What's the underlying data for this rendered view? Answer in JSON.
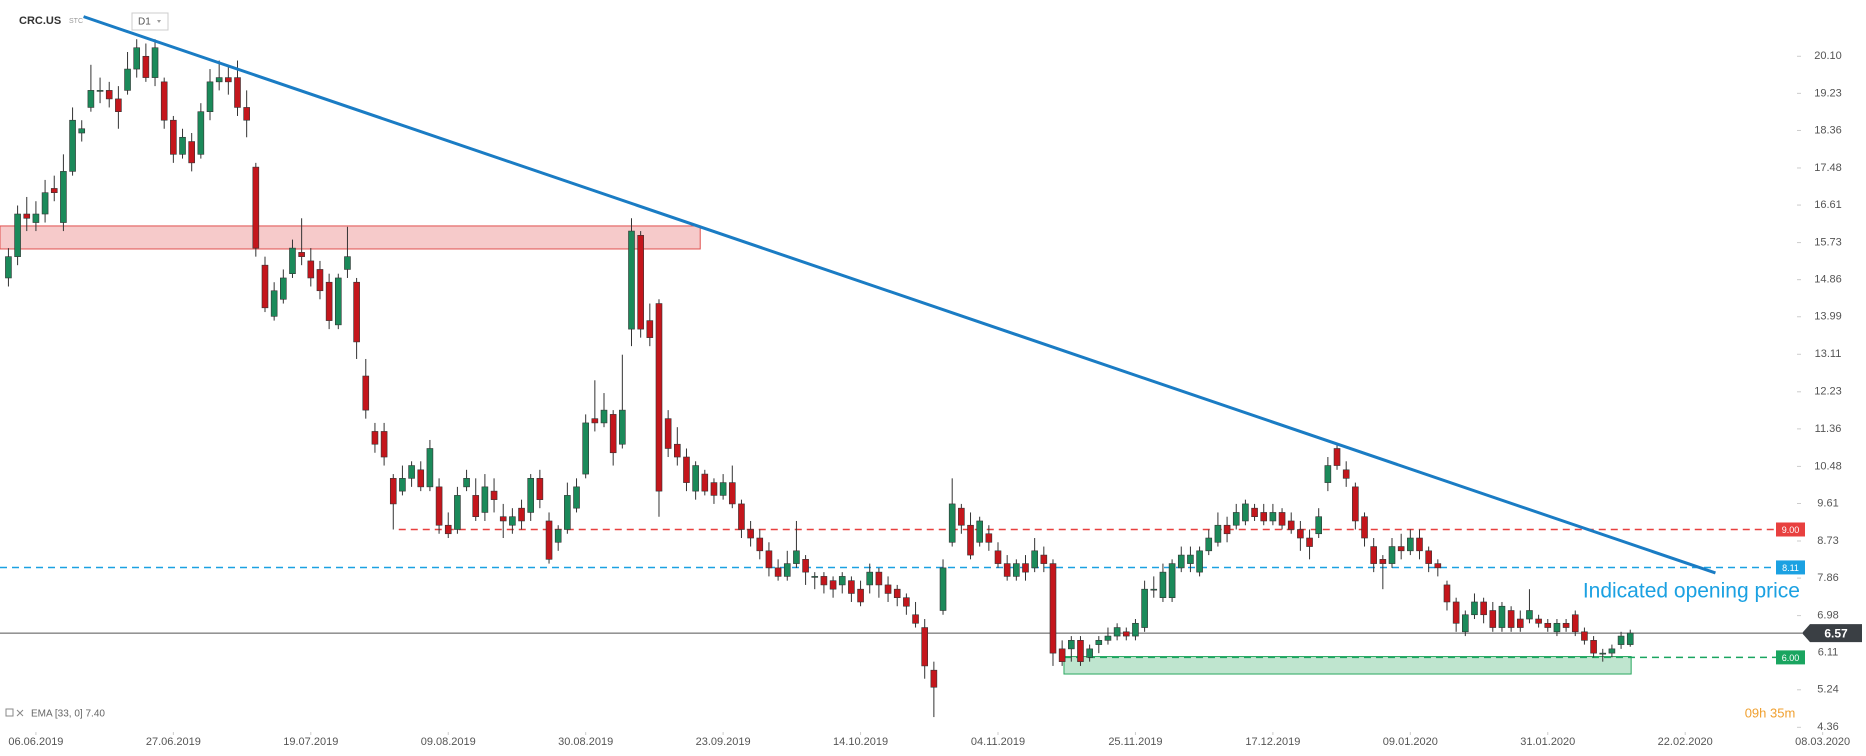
{
  "chart_data": {
    "type": "candlestick",
    "symbol": "CRC.US",
    "source": "STC",
    "timeframe": "D1",
    "indicator": "EMA [33, 0] 7.40",
    "annotation": "Indicated opening price",
    "countdown": "09h 35m",
    "up_color": "#1b8a5a",
    "down_color": "#c4161c",
    "open": [
      14.9,
      15.4,
      16.4,
      16.2,
      16.4,
      17.0,
      16.2,
      17.4,
      18.3,
      18.9,
      19.3,
      19.3,
      19.1,
      19.3,
      19.8,
      20.1,
      19.6,
      19.5,
      18.6,
      17.8,
      18.1,
      17.8,
      18.8,
      19.5,
      19.6,
      19.6,
      18.9,
      17.5,
      15.2,
      14.0,
      14.4,
      15.0,
      15.5,
      15.3,
      15.1,
      14.8,
      13.8,
      15.1,
      14.8,
      12.6,
      11.3,
      11.3,
      10.2,
      9.9,
      10.2,
      10.4,
      10.0,
      10.0,
      9.1,
      9.0,
      10.0,
      9.8,
      9.4,
      9.9,
      9.3,
      9.1,
      9.5,
      9.4,
      10.2,
      9.2,
      8.7,
      9.0,
      9.5,
      10.3,
      11.6,
      11.5,
      11.7,
      11.0,
      13.7,
      15.9,
      13.9,
      14.3,
      11.6,
      11.0,
      10.7,
      9.9,
      10.3,
      10.1,
      9.8,
      10.1,
      9.6,
      9.0,
      8.8,
      8.5,
      8.1,
      7.9,
      8.2,
      8.3,
      7.9,
      7.9,
      7.8,
      7.7,
      7.8,
      7.6,
      7.7,
      8.0,
      7.7,
      7.6,
      7.4,
      7.0,
      6.7,
      5.7,
      7.1,
      8.7,
      9.5,
      9.1,
      8.7,
      8.9,
      8.5,
      8.2,
      7.9,
      8.2,
      8.1,
      8.4,
      8.2,
      6.2,
      6.2,
      6.4,
      6.0,
      6.3,
      6.4,
      6.5,
      6.6,
      6.5,
      6.7,
      7.6,
      7.4,
      7.4,
      8.1,
      8.2,
      8.0,
      8.5,
      8.7,
      9.1,
      9.1,
      9.2,
      9.5,
      9.4,
      9.2,
      9.4,
      9.2,
      9.0,
      8.8,
      8.9,
      10.1,
      10.9,
      10.4,
      10.0,
      9.3,
      8.6,
      8.3,
      8.2,
      8.6,
      8.5,
      8.8,
      8.5,
      8.2,
      7.7,
      7.3,
      6.6,
      7.0,
      7.3,
      7.1,
      6.7,
      7.1,
      6.9,
      6.9,
      6.9,
      6.8,
      6.6,
      6.8,
      7.0,
      6.6,
      6.4,
      6.1,
      6.1,
      6.3,
      6.3
    ],
    "high": [
      15.6,
      16.6,
      16.8,
      16.7,
      17.2,
      17.3,
      17.8,
      18.9,
      18.6,
      19.9,
      19.6,
      19.5,
      19.4,
      20.2,
      20.5,
      20.4,
      20.5,
      19.6,
      18.7,
      18.4,
      18.3,
      19.0,
      19.8,
      20.0,
      19.9,
      20.0,
      19.3,
      17.6,
      15.4,
      14.8,
      15.1,
      15.8,
      16.3,
      15.6,
      15.3,
      15.0,
      15.0,
      16.1,
      14.9,
      13.0,
      11.5,
      11.5,
      10.3,
      10.5,
      10.6,
      10.6,
      11.1,
      10.2,
      9.4,
      10.0,
      10.4,
      10.2,
      10.3,
      10.2,
      9.6,
      9.5,
      9.7,
      10.3,
      10.4,
      9.4,
      9.1,
      10.1,
      10.2,
      11.7,
      12.5,
      12.2,
      11.8,
      13.1,
      16.3,
      16.0,
      14.3,
      14.4,
      11.8,
      11.4,
      10.9,
      10.6,
      10.4,
      10.2,
      10.3,
      10.5,
      9.7,
      9.2,
      9.0,
      8.7,
      8.3,
      8.5,
      9.2,
      8.4,
      8.0,
      8.0,
      7.9,
      8.0,
      7.9,
      7.8,
      8.2,
      8.1,
      7.9,
      7.7,
      7.5,
      7.3,
      6.9,
      5.9,
      8.3,
      10.2,
      9.6,
      9.4,
      9.3,
      9.1,
      8.7,
      8.4,
      8.3,
      8.4,
      8.8,
      8.6,
      8.3,
      6.4,
      6.5,
      6.5,
      6.3,
      6.5,
      6.7,
      6.8,
      6.7,
      6.9,
      7.8,
      7.9,
      8.2,
      8.3,
      8.6,
      8.6,
      8.6,
      9.0,
      9.4,
      9.3,
      9.6,
      9.7,
      9.6,
      9.6,
      9.6,
      9.5,
      9.4,
      9.2,
      9.0,
      9.5,
      10.7,
      11.0,
      10.6,
      10.1,
      9.4,
      8.8,
      8.4,
      8.8,
      8.9,
      9.0,
      9.0,
      8.6,
      8.3,
      7.8,
      7.4,
      7.1,
      7.5,
      7.4,
      7.3,
      7.3,
      7.2,
      7.1,
      7.6,
      7.0,
      6.9,
      6.9,
      6.9,
      7.1,
      6.7,
      6.5,
      6.2,
      6.3,
      6.6,
      6.65
    ],
    "low": [
      14.7,
      15.2,
      16.0,
      16.0,
      16.2,
      16.7,
      16.0,
      17.3,
      18.1,
      18.8,
      19.0,
      18.9,
      18.4,
      19.2,
      19.6,
      19.5,
      19.4,
      18.4,
      17.6,
      17.7,
      17.4,
      17.7,
      18.6,
      19.3,
      19.2,
      18.7,
      18.2,
      15.4,
      14.1,
      13.9,
      14.3,
      14.9,
      15.2,
      14.7,
      14.4,
      13.7,
      13.7,
      14.9,
      13.0,
      11.6,
      10.8,
      10.5,
      9.0,
      9.8,
      10.0,
      9.9,
      9.9,
      8.9,
      8.8,
      8.9,
      9.9,
      9.2,
      9.2,
      9.4,
      8.8,
      8.9,
      9.0,
      9.2,
      9.5,
      8.2,
      8.5,
      8.9,
      9.4,
      10.2,
      11.3,
      11.4,
      10.5,
      10.9,
      13.3,
      13.5,
      13.3,
      9.3,
      10.7,
      10.5,
      9.9,
      9.7,
      9.8,
      9.6,
      9.7,
      9.5,
      8.8,
      8.6,
      8.3,
      7.9,
      7.8,
      7.8,
      8.1,
      7.7,
      7.6,
      7.5,
      7.4,
      7.5,
      7.3,
      7.2,
      7.5,
      7.4,
      7.3,
      7.2,
      7.0,
      6.7,
      5.5,
      4.6,
      7.0,
      8.6,
      8.9,
      8.3,
      8.6,
      8.5,
      8.1,
      7.8,
      7.8,
      7.8,
      8.0,
      8.0,
      5.8,
      5.8,
      5.9,
      5.8,
      5.9,
      6.1,
      6.3,
      6.4,
      6.4,
      6.4,
      6.6,
      7.4,
      7.3,
      7.3,
      8.0,
      8.0,
      7.9,
      8.4,
      8.6,
      8.7,
      9.0,
      9.1,
      9.2,
      9.1,
      9.1,
      9.0,
      8.9,
      8.5,
      8.3,
      8.8,
      9.9,
      10.4,
      10.0,
      9.0,
      8.6,
      8.0,
      7.6,
      8.1,
      8.3,
      8.4,
      8.3,
      8.0,
      7.9,
      7.1,
      6.6,
      6.5,
      6.9,
      6.8,
      6.6,
      6.6,
      6.6,
      6.6,
      6.8,
      6.7,
      6.6,
      6.5,
      6.6,
      6.5,
      6.3,
      6.0,
      5.9,
      6.0,
      6.2,
      6.25
    ],
    "close": [
      15.4,
      16.4,
      16.3,
      16.4,
      16.9,
      16.9,
      17.4,
      18.6,
      18.4,
      19.3,
      19.3,
      19.1,
      18.8,
      19.8,
      20.3,
      19.6,
      20.3,
      18.6,
      17.8,
      18.2,
      17.6,
      18.8,
      19.5,
      19.6,
      19.5,
      18.9,
      18.6,
      15.6,
      14.2,
      14.6,
      14.9,
      15.6,
      15.4,
      14.9,
      14.6,
      13.9,
      14.9,
      15.4,
      13.4,
      11.8,
      11.0,
      10.7,
      9.6,
      10.2,
      10.5,
      10.0,
      10.9,
      9.1,
      8.9,
      9.8,
      10.2,
      9.3,
      10.0,
      9.7,
      9.2,
      9.3,
      9.2,
      10.2,
      9.7,
      8.3,
      9.0,
      9.8,
      10.0,
      11.5,
      11.5,
      11.8,
      10.8,
      11.8,
      16.0,
      13.7,
      13.5,
      9.9,
      10.9,
      10.7,
      10.1,
      10.5,
      9.9,
      9.8,
      10.1,
      9.6,
      9.0,
      8.8,
      8.5,
      8.1,
      7.9,
      8.2,
      8.5,
      8.0,
      7.9,
      7.7,
      7.6,
      7.9,
      7.5,
      7.3,
      8.0,
      7.7,
      7.5,
      7.4,
      7.2,
      6.8,
      5.8,
      5.3,
      8.1,
      9.6,
      9.1,
      8.4,
      9.2,
      8.7,
      8.2,
      7.9,
      8.2,
      8.0,
      8.5,
      8.2,
      6.1,
      5.9,
      6.4,
      5.9,
      6.2,
      6.4,
      6.5,
      6.7,
      6.5,
      6.8,
      7.6,
      7.6,
      8.0,
      8.2,
      8.4,
      8.4,
      8.5,
      8.8,
      9.1,
      8.9,
      9.4,
      9.6,
      9.3,
      9.2,
      9.4,
      9.1,
      9.0,
      8.8,
      8.6,
      9.3,
      10.5,
      10.5,
      10.2,
      9.2,
      8.8,
      8.2,
      8.2,
      8.6,
      8.5,
      8.8,
      8.5,
      8.2,
      8.1,
      7.3,
      6.8,
      7.0,
      7.3,
      7.0,
      6.7,
      7.2,
      6.7,
      6.7,
      7.1,
      6.8,
      6.7,
      6.8,
      6.7,
      6.6,
      6.4,
      6.1,
      6.1,
      6.2,
      6.5,
      6.57
    ],
    "xlim": [
      -0.92,
      195.2
    ],
    "xticks": [
      {
        "value": 3,
        "label": "06.06.2019"
      },
      {
        "value": 18,
        "label": "27.06.2019"
      },
      {
        "value": 33,
        "label": "19.07.2019"
      },
      {
        "value": 48,
        "label": "09.08.2019"
      },
      {
        "value": 63,
        "label": "30.08.2019"
      },
      {
        "value": 78,
        "label": "23.09.2019"
      },
      {
        "value": 93,
        "label": "14.10.2019"
      },
      {
        "value": 108,
        "label": "04.11.2019"
      },
      {
        "value": 123,
        "label": "25.11.2019"
      },
      {
        "value": 138,
        "label": "17.12.2019"
      },
      {
        "value": 153,
        "label": "09.01.2020"
      },
      {
        "value": 168,
        "label": "31.01.2020"
      },
      {
        "value": 183,
        "label": "22.02.2020"
      },
      {
        "value": 198,
        "label": "08.03.2020"
      }
    ],
    "ylim": [
      4.25,
      21.42
    ],
    "yticks": [
      {
        "value": 20.1,
        "label": "20.10"
      },
      19.23,
      18.36,
      17.48,
      16.61,
      15.73,
      14.86,
      13.99,
      13.11,
      12.23,
      11.36,
      10.48,
      9.61,
      8.73,
      7.86,
      6.98,
      6.11,
      5.24,
      4.36
    ],
    "grid": false,
    "trendline": {
      "x": [
        8.2,
        186.3
      ],
      "y": [
        21.03,
        7.98
      ],
      "color": "#1a7cc4"
    },
    "zones": [
      {
        "x": [
          -0.92,
          75.5
        ],
        "y": [
          15.58,
          16.12
        ],
        "color": "#e0504f"
      },
      {
        "x": [
          115.2,
          177.1
        ],
        "y": [
          5.61,
          6.02
        ],
        "color": "#2aa860"
      }
    ],
    "levels": [
      {
        "value": 9,
        "label": "9.00",
        "color": "#e8403f",
        "dashed": true,
        "start": 42.6
      },
      {
        "value": 8.11,
        "label": "8.11",
        "color": "#1ba1e2",
        "dashed": true
      },
      {
        "value": 6.57,
        "label": "6.57",
        "color": "#3a3f44",
        "dashed": false,
        "current": true
      },
      {
        "value": 6,
        "label": "6.00",
        "color": "#1aa560",
        "dashed": true,
        "start": 115.2
      }
    ]
  }
}
